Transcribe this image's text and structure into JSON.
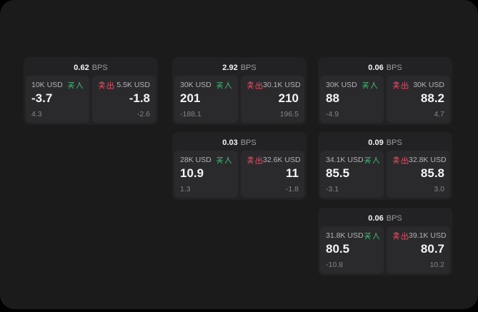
{
  "labels": {
    "bps_unit": "BPS",
    "buy": "买入",
    "sell": "卖出"
  },
  "colors": {
    "canvas": "#000000",
    "surface": "#1b1b1c",
    "card": "#222224",
    "panel": "#2a2a2c",
    "buy_green": "#3eae6d",
    "sell_red": "#d2495f",
    "text_primary": "#f4f4f6",
    "text_secondary": "#9c9ca1",
    "text_amount": "#b3b3b7",
    "text_muted": "#85858a"
  },
  "cards": [
    {
      "bps": "0.62",
      "col": 0,
      "row": 0,
      "buy": {
        "amount": "10K USD",
        "price": "-3.7",
        "sub": "4.3"
      },
      "sell": {
        "amount": "5.5K USD",
        "price": "-1.8",
        "sub": "-2.6"
      }
    },
    {
      "bps": "2.92",
      "col": 1,
      "row": 0,
      "buy": {
        "amount": "30K USD",
        "price": "201",
        "sub": "-188.1"
      },
      "sell": {
        "amount": "30.1K USD",
        "price": "210",
        "sub": "196.5"
      }
    },
    {
      "bps": "0.06",
      "col": 2,
      "row": 0,
      "buy": {
        "amount": "30K USD",
        "price": "88",
        "sub": "-4.9"
      },
      "sell": {
        "amount": "30K USD",
        "price": "88.2",
        "sub": "4.7"
      }
    },
    {
      "bps": "0.03",
      "col": 1,
      "row": 1,
      "buy": {
        "amount": "28K USD",
        "price": "10.9",
        "sub": "1.3"
      },
      "sell": {
        "amount": "32.6K USD",
        "price": "11",
        "sub": "-1.8"
      }
    },
    {
      "bps": "0.09",
      "col": 2,
      "row": 1,
      "buy": {
        "amount": "34.1K USD",
        "price": "85.5",
        "sub": "-3.1"
      },
      "sell": {
        "amount": "32.8K USD",
        "price": "85.8",
        "sub": "3.0"
      }
    },
    {
      "bps": "0.06",
      "col": 2,
      "row": 2,
      "buy": {
        "amount": "31.8K USD",
        "price": "80.5",
        "sub": "-10.8"
      },
      "sell": {
        "amount": "39.1K USD",
        "price": "80.7",
        "sub": "10.2"
      }
    }
  ]
}
